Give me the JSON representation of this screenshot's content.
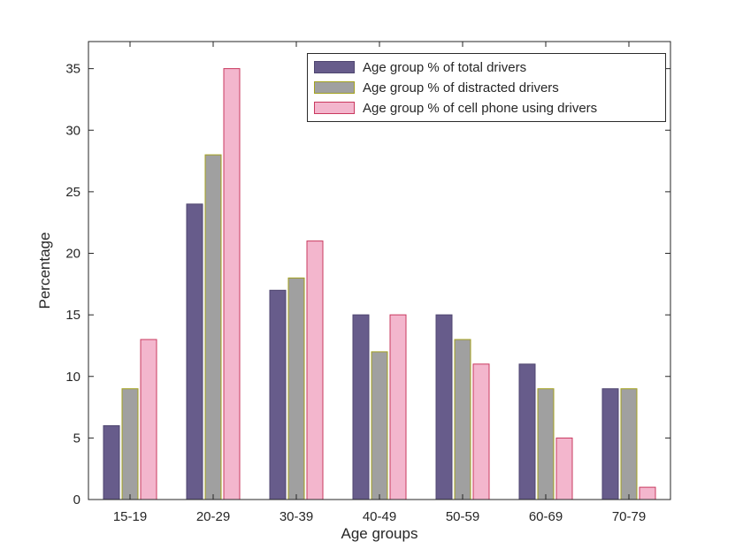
{
  "figure": {
    "background": "#ffffff",
    "axis_color": "#262626"
  },
  "chart_data": {
    "type": "bar",
    "title": "",
    "xlabel": "Age groups",
    "ylabel": "Percentage",
    "categories": [
      "15-19",
      "20-29",
      "30-39",
      "40-49",
      "50-59",
      "60-69",
      "70-79"
    ],
    "series": [
      {
        "name": "Age group % of total drivers",
        "values": [
          6,
          24,
          17,
          15,
          15,
          11,
          9
        ],
        "fill": "#675c8b",
        "edge": "#4f4670"
      },
      {
        "name": "Age group % of distracted drivers",
        "values": [
          9,
          28,
          18,
          12,
          13,
          9,
          9
        ],
        "fill": "#a0a0a0",
        "edge": "#a3a11e"
      },
      {
        "name": "Age group % of cell phone using drivers",
        "values": [
          13,
          35,
          21,
          15,
          11,
          5,
          1
        ],
        "fill": "#f3b6cd",
        "edge": "#c9395f"
      }
    ],
    "ylim": [
      0,
      37.2
    ],
    "yticks": [
      0,
      5,
      10,
      15,
      20,
      25,
      30,
      35
    ],
    "grid": false,
    "legend_position": "top-right-inside"
  }
}
